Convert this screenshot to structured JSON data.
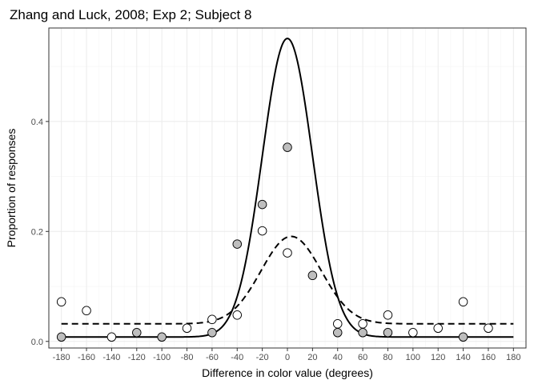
{
  "chart_data": {
    "type": "scatter",
    "title": "Zhang and Luck, 2008; Exp 2; Subject 8",
    "xlabel": "Difference in color value (degrees)",
    "ylabel": "Proportion of responses",
    "xlim": [
      -190,
      190
    ],
    "ylim": [
      -0.012,
      0.57
    ],
    "x_ticks": [
      -180,
      -160,
      -140,
      -120,
      -100,
      -80,
      -60,
      -40,
      -20,
      0,
      20,
      40,
      60,
      80,
      100,
      120,
      140,
      160,
      180
    ],
    "x_tick_labels": [
      "-180",
      "-160",
      "-140",
      "-120",
      "-100",
      "-80",
      "-60",
      "-40",
      "-20",
      "0",
      "20",
      "40",
      "60",
      "80",
      "100",
      "120",
      "140",
      "160",
      "180"
    ],
    "y_ticks": [
      0,
      0.2,
      0.4
    ],
    "y_tick_labels": [
      "0.0",
      "0.2",
      "0.4"
    ],
    "grid": true,
    "colors": {
      "panel_border": "#333333",
      "grid_major": "#ebebeb",
      "grid_minor": "#f5f5f5",
      "gray_point": "#bebebe",
      "white_point": "#ffffff",
      "line": "#000000"
    },
    "series": [
      {
        "marker": "gray-circle",
        "x": [
          -180,
          -120,
          -100,
          -60,
          -40,
          -20,
          0,
          20,
          40,
          60,
          80,
          140
        ],
        "y": [
          0.008,
          0.016,
          0.008,
          0.016,
          0.177,
          0.249,
          0.353,
          0.12,
          0.016,
          0.016,
          0.016,
          0.008
        ]
      },
      {
        "marker": "white-circle",
        "x": [
          -180,
          -160,
          -140,
          -80,
          -60,
          -40,
          -20,
          0,
          40,
          60,
          80,
          100,
          120,
          140,
          160
        ],
        "y": [
          0.072,
          0.056,
          0.008,
          0.024,
          0.04,
          0.048,
          0.201,
          0.161,
          0.032,
          0.032,
          0.048,
          0.016,
          0.024,
          0.072,
          0.024
        ]
      }
    ],
    "fits": [
      {
        "style": "solid",
        "baseline": 0.008,
        "peak": 0.551,
        "sd": 20,
        "mean": 0
      },
      {
        "style": "dashed",
        "baseline": 0.032,
        "peak": 0.191,
        "sd": 24,
        "mean": 3
      }
    ]
  }
}
